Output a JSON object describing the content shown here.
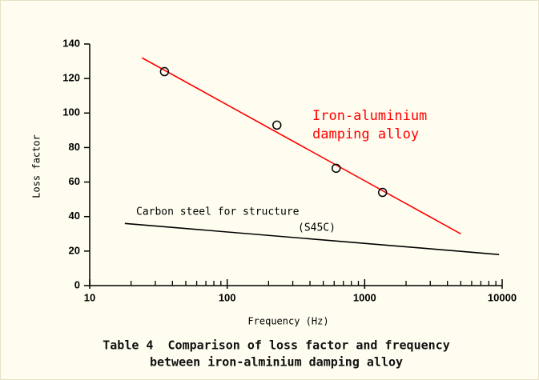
{
  "chart_data": {
    "type": "line",
    "xlabel": "Frequency (Hz)",
    "ylabel": "Loss factor",
    "caption": [
      "Table 4  Comparison of loss factor and frequency",
      "between iron-alminium damping alloy"
    ],
    "xlog": true,
    "xlim": [
      10,
      10000
    ],
    "xticks": [
      10,
      100,
      1000,
      10000
    ],
    "ylim": [
      0,
      140
    ],
    "yticks": [
      0,
      20,
      40,
      60,
      80,
      100,
      120,
      140
    ],
    "series": [
      {
        "label_lines": [
          "Iron-aluminium",
          "damping alloy"
        ],
        "color": "#ff0000",
        "style": "line",
        "x": [
          24,
          5000
        ],
        "values": [
          132,
          30
        ]
      },
      {
        "label_lines": [
          "Carbon steel for structure",
          "(S45C)"
        ],
        "color": "#000000",
        "style": "line",
        "x": [
          18,
          9500
        ],
        "values": [
          36,
          18
        ]
      },
      {
        "color": "#000000",
        "style": "markers",
        "x": [
          35,
          230,
          620,
          1350
        ],
        "values": [
          124,
          93,
          68,
          54
        ]
      }
    ]
  }
}
